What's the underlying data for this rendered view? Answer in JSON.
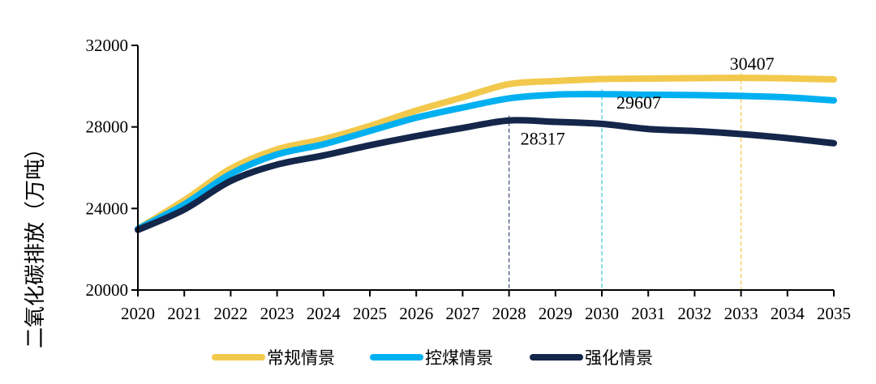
{
  "chart_data": {
    "type": "line",
    "title": "",
    "xlabel": "",
    "ylabel": "二氧化碳排放（万吨）",
    "ylim": [
      20000,
      32000
    ],
    "yticks": [
      "20000",
      "24000",
      "28000",
      "32000"
    ],
    "x": [
      "2020",
      "2021",
      "2022",
      "2023",
      "2024",
      "2025",
      "2026",
      "2027",
      "2028",
      "2029",
      "2030",
      "2031",
      "2032",
      "2033",
      "2034",
      "2035"
    ],
    "grid": false,
    "legend_position": "bottom",
    "series": [
      {
        "name": "常规情景",
        "color": "#F2C94C",
        "values": [
          23000,
          24400,
          25950,
          26900,
          27400,
          28050,
          28800,
          29450,
          30100,
          30250,
          30350,
          30370,
          30390,
          30407,
          30380,
          30330
        ]
      },
      {
        "name": "控煤情景",
        "color": "#00B0F0",
        "values": [
          23000,
          24200,
          25700,
          26650,
          27150,
          27800,
          28450,
          28950,
          29400,
          29580,
          29607,
          29580,
          29560,
          29520,
          29450,
          29300
        ]
      },
      {
        "name": "强化情景",
        "color": "#14264A",
        "values": [
          22950,
          23950,
          25350,
          26150,
          26600,
          27100,
          27550,
          27950,
          28317,
          28250,
          28150,
          27900,
          27800,
          27650,
          27450,
          27200
        ]
      }
    ],
    "annotations": [
      {
        "series_index": 2,
        "x": "2028",
        "value": 28317,
        "label": "28317",
        "color": "#3B4A7A"
      },
      {
        "series_index": 1,
        "x": "2030",
        "value": 29607,
        "label": "29607",
        "color": "#39C3D8"
      },
      {
        "series_index": 0,
        "x": "2033",
        "value": 30407,
        "label": "30407",
        "color": "#F2C94C"
      }
    ]
  }
}
